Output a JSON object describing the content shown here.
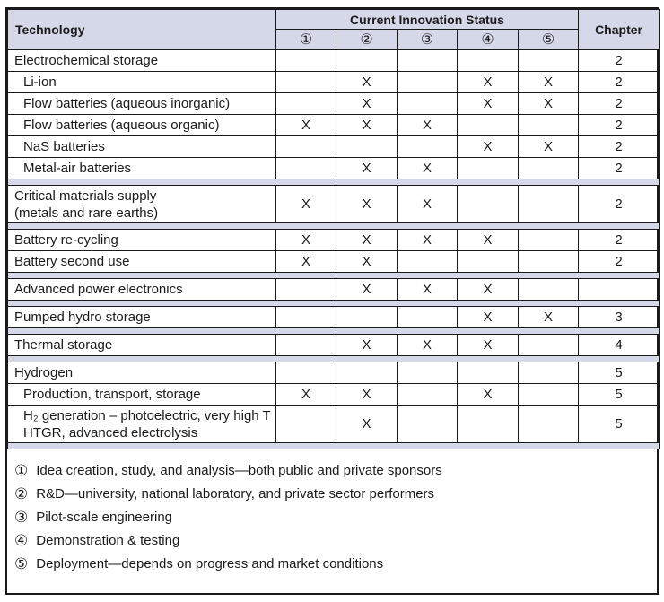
{
  "colors": {
    "header_fill": "#d5d8e8",
    "border": "#1a1a1a",
    "text": "#1a1a1a",
    "background": "#ffffff"
  },
  "chart_data": {
    "type": "table",
    "headers": {
      "technology": "Technology",
      "status_group": "Current Innovation Status",
      "status_cols": [
        "①",
        "②",
        "③",
        "④",
        "⑤"
      ],
      "chapter": "Chapter"
    },
    "mark_glyph": "X",
    "rows": [
      {
        "technology": "Electrochemical storage",
        "indent": false,
        "status": [
          "",
          "",
          "",
          "",
          ""
        ],
        "chapter": "2"
      },
      {
        "technology": "Li-ion",
        "indent": true,
        "status": [
          "",
          "X",
          "",
          "X",
          "X"
        ],
        "chapter": "2"
      },
      {
        "technology": "Flow batteries (aqueous inorganic)",
        "indent": true,
        "status": [
          "",
          "X",
          "",
          "X",
          "X"
        ],
        "chapter": "2"
      },
      {
        "technology": "Flow batteries (aqueous organic)",
        "indent": true,
        "status": [
          "X",
          "X",
          "X",
          "",
          ""
        ],
        "chapter": "2"
      },
      {
        "technology": "NaS batteries",
        "indent": true,
        "status": [
          "",
          "",
          "",
          "X",
          "X"
        ],
        "chapter": "2"
      },
      {
        "technology": "Metal-air batteries",
        "indent": true,
        "status": [
          "",
          "X",
          "X",
          "",
          ""
        ],
        "chapter": "2"
      },
      {
        "separator": true
      },
      {
        "technology": "Critical materials supply\n(metals and rare earths)",
        "indent": false,
        "two_line": true,
        "status": [
          "X",
          "X",
          "X",
          "",
          ""
        ],
        "chapter": "2"
      },
      {
        "separator": true
      },
      {
        "technology": "Battery re-cycling",
        "indent": false,
        "status": [
          "X",
          "X",
          "X",
          "X",
          ""
        ],
        "chapter": "2"
      },
      {
        "technology": "Battery second use",
        "indent": false,
        "status": [
          "X",
          "X",
          "",
          "",
          ""
        ],
        "chapter": "2"
      },
      {
        "separator": true
      },
      {
        "technology": "Advanced power electronics",
        "indent": false,
        "status": [
          "",
          "X",
          "X",
          "X",
          ""
        ],
        "chapter": ""
      },
      {
        "separator": true
      },
      {
        "technology": "Pumped hydro storage",
        "indent": false,
        "status": [
          "",
          "",
          "",
          "X",
          "X"
        ],
        "chapter": "3"
      },
      {
        "separator": true
      },
      {
        "technology": "Thermal storage",
        "indent": false,
        "status": [
          "",
          "X",
          "X",
          "X",
          ""
        ],
        "chapter": "4"
      },
      {
        "separator": true
      },
      {
        "technology": "Hydrogen",
        "indent": false,
        "status": [
          "",
          "",
          "",
          "",
          ""
        ],
        "chapter": "5"
      },
      {
        "technology": "Production, transport, storage",
        "indent": true,
        "status": [
          "X",
          "X",
          "",
          "X",
          ""
        ],
        "chapter": "5"
      },
      {
        "technology": "H₂ generation – photoelectric, very high T\nHTGR, advanced electrolysis",
        "indent": true,
        "two_line": true,
        "status": [
          "",
          "X",
          "",
          "",
          ""
        ],
        "chapter": "5"
      },
      {
        "separator": true
      }
    ],
    "legend": [
      {
        "symbol": "①",
        "text": "Idea creation, study, and analysis—both public and private sponsors"
      },
      {
        "symbol": "②",
        "text": "R&D—university, national laboratory, and private sector performers"
      },
      {
        "symbol": "③",
        "text": "Pilot-scale engineering"
      },
      {
        "symbol": "④",
        "text": "Demonstration & testing"
      },
      {
        "symbol": "⑤",
        "text": "Deployment—depends on progress and market conditions"
      }
    ]
  }
}
